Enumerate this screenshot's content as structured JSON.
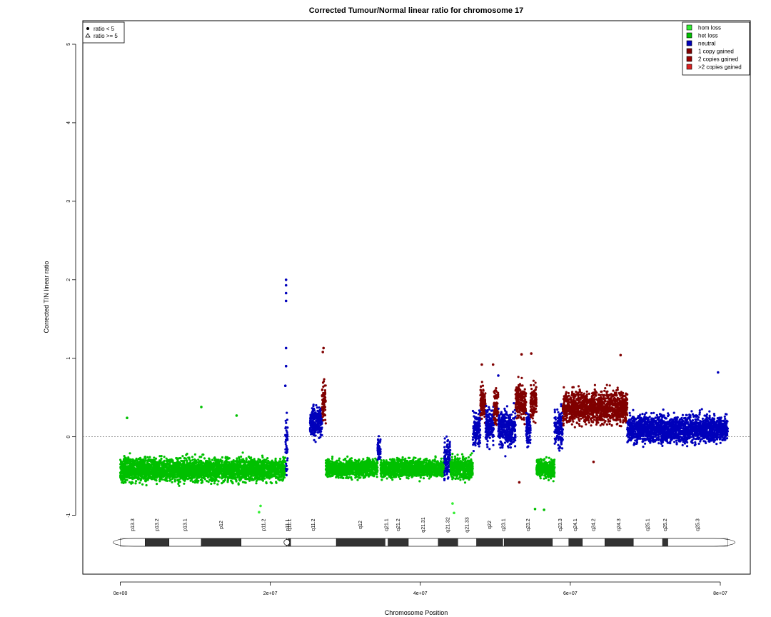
{
  "chart_data": {
    "type": "scatter",
    "title": "Corrected Tumour/Normal linear ratio for chromosome  17",
    "xlabel": "Chromosome Position",
    "ylabel": "Corrected T/N linear ratio",
    "xlim": [
      -5000000,
      84000000
    ],
    "ylim": [
      -1.75,
      5.3
    ],
    "x_ticks": [
      {
        "value": 0,
        "label": "0e+00"
      },
      {
        "value": 20000000,
        "label": "2e+07"
      },
      {
        "value": 40000000,
        "label": "4e+07"
      },
      {
        "value": 60000000,
        "label": "6e+07"
      },
      {
        "value": 80000000,
        "label": "8e+07"
      }
    ],
    "y_ticks": [
      {
        "value": -1,
        "label": "-1"
      },
      {
        "value": 0,
        "label": "0"
      },
      {
        "value": 1,
        "label": "1"
      },
      {
        "value": 2,
        "label": "2"
      },
      {
        "value": 3,
        "label": "3"
      },
      {
        "value": 4,
        "label": "4"
      },
      {
        "value": 5,
        "label": "5"
      }
    ],
    "reference_line": 0,
    "colors": {
      "hom_loss": "#33ee33",
      "het_loss": "#00c000",
      "neutral": "#0000bb",
      "gain_1": "#800000",
      "gain_2": "#990000",
      "gain_more": "#dd2222"
    },
    "marker_legend": {
      "placement": "top-left",
      "entries": [
        {
          "symbol": "dot",
          "label": "ratio < 5"
        },
        {
          "symbol": "triangle",
          "label": "ratio >= 5"
        }
      ]
    },
    "legend": {
      "placement": "top-right",
      "entries": [
        {
          "label": "hom loss",
          "color": "#33ee33"
        },
        {
          "label": "het loss",
          "color": "#00c000"
        },
        {
          "label": "neutral",
          "color": "#0000bb"
        },
        {
          "label": "1 copy gained",
          "color": "#800000"
        },
        {
          "label": "2 copies gained",
          "color": "#990000"
        },
        {
          "label": ">2 copies gained",
          "color": ">2 copies gained"
        }
      ]
    },
    "segments": [
      {
        "start": 0,
        "end": 22000000,
        "mean": -0.42,
        "spread": 0.13,
        "state": "het_loss"
      },
      {
        "start": 22000000,
        "end": 22300000,
        "mean": -0.1,
        "spread": 0.35,
        "state": "neutral"
      },
      {
        "start": 25300000,
        "end": 26900000,
        "mean": 0.2,
        "spread": 0.18,
        "state": "neutral"
      },
      {
        "start": 26900000,
        "end": 27400000,
        "mean": 0.45,
        "spread": 0.22,
        "state": "gain_1"
      },
      {
        "start": 27400000,
        "end": 34300000,
        "mean": -0.4,
        "spread": 0.1,
        "state": "het_loss"
      },
      {
        "start": 34300000,
        "end": 34700000,
        "mean": -0.15,
        "spread": 0.15,
        "state": "neutral"
      },
      {
        "start": 34700000,
        "end": 43200000,
        "mean": -0.4,
        "spread": 0.1,
        "state": "het_loss"
      },
      {
        "start": 43200000,
        "end": 44000000,
        "mean": -0.3,
        "spread": 0.2,
        "state": "neutral"
      },
      {
        "start": 44000000,
        "end": 47000000,
        "mean": -0.4,
        "spread": 0.12,
        "state": "het_loss"
      },
      {
        "start": 47000000,
        "end": 48000000,
        "mean": 0.1,
        "spread": 0.2,
        "state": "neutral"
      },
      {
        "start": 48000000,
        "end": 48700000,
        "mean": 0.45,
        "spread": 0.2,
        "state": "gain_1"
      },
      {
        "start": 48700000,
        "end": 49800000,
        "mean": 0.15,
        "spread": 0.2,
        "state": "neutral"
      },
      {
        "start": 49800000,
        "end": 50400000,
        "mean": 0.4,
        "spread": 0.2,
        "state": "gain_1"
      },
      {
        "start": 50400000,
        "end": 52700000,
        "mean": 0.1,
        "spread": 0.2,
        "state": "neutral"
      },
      {
        "start": 52700000,
        "end": 54100000,
        "mean": 0.45,
        "spread": 0.2,
        "state": "gain_1"
      },
      {
        "start": 54100000,
        "end": 54700000,
        "mean": 0.1,
        "spread": 0.2,
        "state": "neutral"
      },
      {
        "start": 54700000,
        "end": 55500000,
        "mean": 0.45,
        "spread": 0.2,
        "state": "gain_1"
      },
      {
        "start": 55500000,
        "end": 57900000,
        "mean": -0.4,
        "spread": 0.1,
        "state": "het_loss"
      },
      {
        "start": 57900000,
        "end": 59000000,
        "mean": 0.1,
        "spread": 0.2,
        "state": "neutral"
      },
      {
        "start": 59000000,
        "end": 67600000,
        "mean": 0.38,
        "spread": 0.18,
        "state": "gain_1"
      },
      {
        "start": 67600000,
        "end": 81000000,
        "mean": 0.1,
        "spread": 0.15,
        "state": "neutral"
      }
    ],
    "outliers": [
      {
        "x": 22100000,
        "y": 2.0,
        "state": "neutral"
      },
      {
        "x": 22100000,
        "y": 1.93,
        "state": "neutral"
      },
      {
        "x": 22100000,
        "y": 1.83,
        "state": "neutral"
      },
      {
        "x": 22100000,
        "y": 1.73,
        "state": "neutral"
      },
      {
        "x": 22100000,
        "y": 1.13,
        "state": "neutral"
      },
      {
        "x": 22100000,
        "y": 0.9,
        "state": "neutral"
      },
      {
        "x": 22000000,
        "y": 0.65,
        "state": "neutral"
      },
      {
        "x": 27100000,
        "y": 1.13,
        "state": "gain_1"
      },
      {
        "x": 27000000,
        "y": 1.08,
        "state": "gain_1"
      },
      {
        "x": 900000,
        "y": 0.24,
        "state": "het_loss"
      },
      {
        "x": 10800000,
        "y": 0.38,
        "state": "het_loss"
      },
      {
        "x": 15500000,
        "y": 0.27,
        "state": "het_loss"
      },
      {
        "x": 18500000,
        "y": -0.96,
        "state": "hom_loss"
      },
      {
        "x": 18700000,
        "y": -0.88,
        "state": "hom_loss"
      },
      {
        "x": 44500000,
        "y": -0.97,
        "state": "hom_loss"
      },
      {
        "x": 44300000,
        "y": -0.85,
        "state": "hom_loss"
      },
      {
        "x": 55300000,
        "y": -0.92,
        "state": "het_loss"
      },
      {
        "x": 56500000,
        "y": -0.93,
        "state": "het_loss"
      },
      {
        "x": 53500000,
        "y": 1.05,
        "state": "gain_1"
      },
      {
        "x": 54800000,
        "y": 1.06,
        "state": "gain_1"
      },
      {
        "x": 49700000,
        "y": 0.92,
        "state": "gain_1"
      },
      {
        "x": 48200000,
        "y": 0.92,
        "state": "gain_1"
      },
      {
        "x": 53200000,
        "y": -0.58,
        "state": "gain_1"
      },
      {
        "x": 66700000,
        "y": 1.04,
        "state": "gain_1"
      },
      {
        "x": 63100000,
        "y": -0.32,
        "state": "gain_1"
      },
      {
        "x": 79700000,
        "y": 0.82,
        "state": "neutral"
      },
      {
        "x": 50400000,
        "y": 0.78,
        "state": "neutral"
      }
    ],
    "ideogram": {
      "length": 81000000,
      "centromere": 22200000,
      "bands": [
        {
          "name": "p13.3",
          "start": 0,
          "end": 3300000,
          "stain": "white"
        },
        {
          "name": "p13.2",
          "start": 3300000,
          "end": 6500000,
          "stain": "dark"
        },
        {
          "name": "p13.1",
          "start": 6500000,
          "end": 10800000,
          "stain": "white"
        },
        {
          "name": "p12",
          "start": 10800000,
          "end": 16100000,
          "stain": "dark"
        },
        {
          "name": "p11.2",
          "start": 16100000,
          "end": 22200000,
          "stain": "white"
        },
        {
          "name": "p11.1",
          "start": 22200000,
          "end": 22400000,
          "stain": "white"
        },
        {
          "name": "q11.1",
          "start": 22400000,
          "end": 22700000,
          "stain": "dark"
        },
        {
          "name": "q11.2",
          "start": 22700000,
          "end": 28800000,
          "stain": "white"
        },
        {
          "name": "q12",
          "start": 28800000,
          "end": 35300000,
          "stain": "dark"
        },
        {
          "name": "q21.1",
          "start": 35300000,
          "end": 35700000,
          "stain": "white"
        },
        {
          "name": "q21.2",
          "start": 35700000,
          "end": 38400000,
          "stain": "dark"
        },
        {
          "name": "q21.31",
          "start": 38400000,
          "end": 42400000,
          "stain": "white"
        },
        {
          "name": "q21.32",
          "start": 42400000,
          "end": 45000000,
          "stain": "dark"
        },
        {
          "name": "q21.33",
          "start": 45000000,
          "end": 47500000,
          "stain": "white"
        },
        {
          "name": "q22",
          "start": 47500000,
          "end": 51000000,
          "stain": "dark"
        },
        {
          "name": "q23.1",
          "start": 51000000,
          "end": 51200000,
          "stain": "white"
        },
        {
          "name": "q23.2",
          "start": 51200000,
          "end": 57600000,
          "stain": "dark"
        },
        {
          "name": "q23.3",
          "start": 57600000,
          "end": 59800000,
          "stain": "white"
        },
        {
          "name": "q24.1",
          "start": 59800000,
          "end": 61600000,
          "stain": "dark"
        },
        {
          "name": "q24.2",
          "start": 61600000,
          "end": 64600000,
          "stain": "white"
        },
        {
          "name": "q24.3",
          "start": 64600000,
          "end": 68400000,
          "stain": "dark"
        },
        {
          "name": "q25.1",
          "start": 68400000,
          "end": 72300000,
          "stain": "white"
        },
        {
          "name": "q25.2",
          "start": 72300000,
          "end": 73000000,
          "stain": "dark"
        },
        {
          "name": "q25.3",
          "start": 73000000,
          "end": 81000000,
          "stain": "white"
        }
      ]
    }
  }
}
